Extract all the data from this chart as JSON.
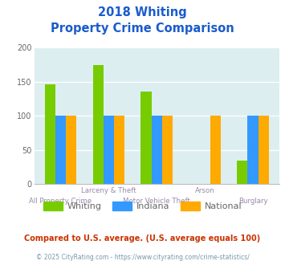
{
  "title_line1": "2018 Whiting",
  "title_line2": "Property Crime Comparison",
  "whiting": [
    146,
    174,
    136,
    0,
    35
  ],
  "indiana": [
    100,
    100,
    100,
    0,
    100
  ],
  "national": [
    100,
    100,
    100,
    100,
    100
  ],
  "whiting_color": "#77cc00",
  "indiana_color": "#3399ff",
  "national_color": "#ffaa00",
  "ylim": [
    0,
    200
  ],
  "yticks": [
    0,
    50,
    100,
    150,
    200
  ],
  "bg_color": "#ddeef0",
  "fig_bg": "#ffffff",
  "title_color": "#1a5ccc",
  "label_color": "#9988aa",
  "footnote1": "Compared to U.S. average. (U.S. average equals 100)",
  "footnote2": "© 2025 CityRating.com - https://www.cityrating.com/crime-statistics/",
  "footnote1_color": "#cc3300",
  "footnote2_color": "#7799aa",
  "legend_labels": [
    "Whiting",
    "Indiana",
    "National"
  ],
  "legend_text_color": "#666666",
  "bar_width": 0.22,
  "line1_labels": [
    "",
    "Larceny & Theft",
    "",
    "Arson",
    ""
  ],
  "line2_labels": [
    "All Property Crime",
    "",
    "Motor Vehicle Theft",
    "",
    "Burglary"
  ]
}
